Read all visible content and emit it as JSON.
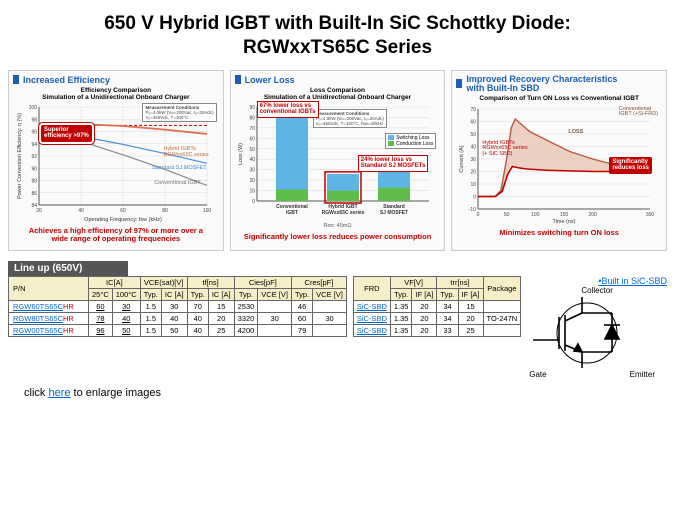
{
  "title_line1": "650 V Hybrid IGBT with Built-In SiC Schottky Diode:",
  "title_line2": "RGWxxTS65C Series",
  "panel1": {
    "heading": "Increased Efficiency",
    "chart_title_l1": "Efficiency Comparison",
    "chart_title_l2": "Simulation of a Unidirectional Onboard Charger",
    "cond_title": "Measurement Conditions",
    "cond_l1": "Pₒ=4.0kW (Vᵢₙ=200Vac, Iₒ=20Adc)",
    "cond_l2": "Vₒ=450Vdc, T=100°C",
    "callout_l1": "Superior",
    "callout_l2": "efficiency >97%",
    "lbl_hybrid_l1": "Hybrid IGBTs",
    "lbl_hybrid_l2": "RGWxx65C series",
    "lbl_sj": "Standard SJ MOSFET",
    "lbl_conv": "Conventional IGBT",
    "xlabel": "Operating Frequency: fsw (kHz)",
    "ylabel": "Power Conversion Efficiency: η (%)",
    "xticks": [
      "20",
      "40",
      "60",
      "80",
      "100"
    ],
    "yticks": [
      "84",
      "86",
      "88",
      "90",
      "92",
      "94",
      "96",
      "98",
      "100"
    ],
    "colors": {
      "hybrid": "#e07050",
      "sj": "#4a90d9",
      "conv": "#8a8a8a",
      "dash": "#c00000",
      "grid": "#d8d8d8",
      "axis": "#555555"
    },
    "series": {
      "hybrid_y": [
        97.3,
        97.2,
        96.9,
        96.3,
        95.6
      ],
      "sj_y": [
        96.5,
        95.2,
        93.9,
        92.4,
        90.8
      ],
      "conv_y": [
        96.3,
        94.4,
        92.2,
        89.8,
        87.2
      ]
    },
    "dash_y": 97,
    "footer_l1": "Achieves a high efficiency of 97% or more over a",
    "footer_l2": "wide range of operating frequencies"
  },
  "panel2": {
    "heading": "Lower Loss",
    "chart_title_l1": "Loss Comparison",
    "chart_title_l2": "Simulation of a Unidirectional Onboard Charger",
    "cond_title": "Measurement Conditions",
    "cond_l1": "Pₒ=4.0kW (Vᵢₙ=200Vac, Iₒ=20Adc)",
    "cond_l2": "Vₒ=450Vdc, T=100°C, fsw=40kHz",
    "callout1_l1": "67% lower loss vs",
    "callout1_l2": "conventional IGBTs",
    "callout2_l1": "24% lower loss vs",
    "callout2_l2": "Standard SJ MOSFETs",
    "legend_sw": "Switching Loss",
    "legend_cd": "Conduction Loss",
    "xlabel_note": "Ron: 45mΩ",
    "ylabel": "Loss (W)",
    "yticks": [
      "0",
      "10",
      "20",
      "30",
      "40",
      "50",
      "60",
      "70",
      "80",
      "90"
    ],
    "categories_l1": [
      "Conventional",
      "Hybrid IGBT",
      "Standard"
    ],
    "categories_l2": [
      "IGBT",
      "RGWxx65C series",
      "SJ MOSFET"
    ],
    "colors": {
      "switch": "#5fb4e6",
      "cond": "#5dbf4a",
      "grid": "#d8d8d8",
      "axis": "#555555",
      "outline_red": "#c00000"
    },
    "values": {
      "conventional": {
        "cond": 11,
        "switch": 70
      },
      "hybrid": {
        "cond": 10,
        "switch": 16
      },
      "sj": {
        "cond": 13,
        "switch": 21
      }
    },
    "footer": "Significantly lower loss reduces power consumption"
  },
  "panel3": {
    "heading_l1": "Improved Recovery Characteristics",
    "heading_l2": "with Built-In SBD",
    "chart_title": "Comparison of Turn ON Loss vs Conventional IGBT",
    "lbl_conv_l1": "Conventional",
    "lbl_conv_l2": "IGBT (+Si-FRD)",
    "lbl_hybrid_l1": "Hybrid IGBTs",
    "lbl_hybrid_l2": "RGWxx65C series",
    "lbl_hybrid_l3": "(+ SiC SBD)",
    "lbl_loss": "LOSS",
    "callout_l1": "Significantly",
    "callout_l2": "reduces loss",
    "xlabel": "Time (ns)",
    "ylabel": "Current (A)",
    "xticks": [
      "0",
      "50",
      "100",
      "150",
      "200",
      "300"
    ],
    "yticks": [
      "-10",
      "0",
      "10",
      "20",
      "30",
      "40",
      "50",
      "60",
      "70"
    ],
    "colors": {
      "conv_line": "#b85a3e",
      "conv_fill": "#e8c8b8",
      "hybrid_line": "#c00000",
      "grid": "#d8d8d8",
      "axis": "#555555"
    },
    "footer": "Minimizes switching turn ON loss"
  },
  "lineup": {
    "head": "Line up (650V)",
    "thead": {
      "pn": "P/N",
      "ic": "IC[A]",
      "vce": "VCE(sat)[V]",
      "tf": "tf[ns]",
      "cies": "Cies[pF]",
      "cres": "Cres[pF]",
      "tc25": "25°C",
      "tc100": "100°C",
      "typ": "Typ.",
      "ica": "IC [A]",
      "vcev": "VCE [V]"
    },
    "rows": [
      {
        "pn_pre": "RGW60TS65C",
        "pn_suf": "HR",
        "ic25": "60",
        "ic100": "30",
        "vce_t": "1.5",
        "vce_i": "30",
        "tf_t": "70",
        "tf_i": "15",
        "cies_t": "2530",
        "cies_v": "",
        "cres_t": "46",
        "cres_v": ""
      },
      {
        "pn_pre": "RGW80TS65C",
        "pn_suf": "HR",
        "ic25": "78",
        "ic100": "40",
        "vce_t": "1.5",
        "vce_i": "40",
        "tf_t": "40",
        "tf_i": "20",
        "cies_t": "3320",
        "cies_v": "30",
        "cres_t": "60",
        "cres_v": "30"
      },
      {
        "pn_pre": "RGW00TS65C",
        "pn_suf": "HR",
        "ic25": "96",
        "ic100": "50",
        "vce_t": "1.5",
        "vce_i": "50",
        "tf_t": "40",
        "tf_i": "25",
        "cies_t": "4200",
        "cies_v": "",
        "cres_t": "79",
        "cres_v": ""
      }
    ]
  },
  "lineup2": {
    "thead": {
      "frd": "FRD",
      "vf": "VF[V]",
      "trr": "trr[ns]",
      "pkg": "Package",
      "typ": "Typ.",
      "ifa": "IF [A]"
    },
    "rows": [
      {
        "frd": "SiC-SBD",
        "vf_t": "1.35",
        "vf_i": "20",
        "trr_t": "34",
        "trr_i": "15",
        "pkg": ""
      },
      {
        "frd": "SiC-SBD",
        "vf_t": "1.35",
        "vf_i": "20",
        "trr_t": "34",
        "trr_i": "20",
        "pkg": "TO-247N"
      },
      {
        "frd": "SiC-SBD",
        "vf_t": "1.35",
        "vf_i": "20",
        "trr_t": "33",
        "trr_i": "25",
        "pkg": ""
      }
    ]
  },
  "symbol": {
    "built_in": "•Built in SiC-SBD",
    "collector": "Collector",
    "gate": "Gate",
    "emitter": "Emitter"
  },
  "enlarge_pre": "click ",
  "enlarge_link": "here",
  "enlarge_post": " to enlarge images"
}
